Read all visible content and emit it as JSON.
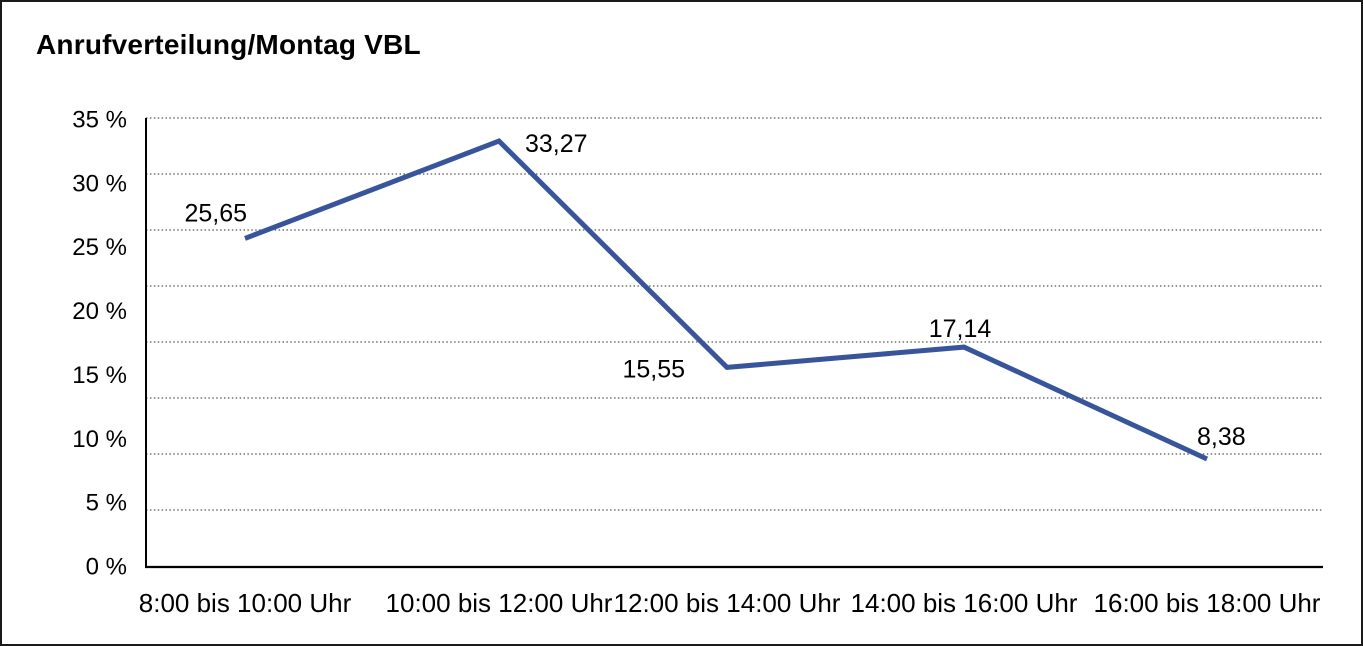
{
  "chart_data": {
    "type": "line",
    "title": "Anrufverteilung/Montag VBL",
    "categories": [
      "8:00 bis 10:00 Uhr",
      "10:00 bis 12:00 Uhr",
      "12:00 bis 14:00 Uhr",
      "14:00 bis 16:00 Uhr",
      "16:00 bis 18:00 Uhr"
    ],
    "values": [
      25.65,
      33.27,
      15.55,
      17.14,
      8.38
    ],
    "value_labels": [
      "25,65",
      "33,27",
      "15,55",
      "17,14",
      "8,38"
    ],
    "series_name": "Anrufverteilung Montag VBL",
    "xlabel": "",
    "ylabel": "",
    "ylim": [
      0,
      35
    ],
    "y_tick_labels": [
      "35 %",
      "30 %",
      "25 %",
      "20 %",
      "15 %",
      "10 %",
      "5 %",
      "0 %"
    ],
    "y_tick_values": [
      35,
      30,
      25,
      20,
      15,
      10,
      5,
      0
    ],
    "grid": "horizontal dotted",
    "legend": "none",
    "colors": {
      "line": "#38559c",
      "grid": "#555555",
      "axis": "#000000",
      "text": "#000000",
      "background": "#ffffff",
      "frame_border": "#1a1a1a"
    }
  }
}
